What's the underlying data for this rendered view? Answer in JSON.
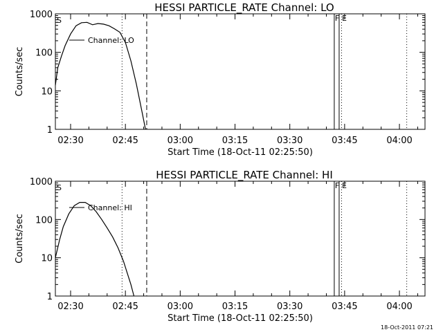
{
  "chart_data": [
    {
      "type": "line",
      "title": "HESSI PARTICLE_RATE Channel: LO",
      "xlabel": "Start Time (18-Oct-11 02:25:50)",
      "ylabel": "Counts/sec",
      "yscale": "log",
      "ylim": [
        1,
        1000
      ],
      "xlim": [
        "02:25:50",
        "04:07:00"
      ],
      "x_ticks": [
        "02:30",
        "02:45",
        "03:00",
        "03:15",
        "03:30",
        "03:45",
        "04:00"
      ],
      "y_ticks": [
        "1",
        "10",
        "100",
        "1000"
      ],
      "legend": "Channel: LO",
      "markers": [
        "S",
        "F",
        "E"
      ],
      "series": [
        {
          "name": "Channel: LO",
          "x": [
            "02:25:50",
            "02:26:30",
            "02:27:30",
            "02:28:30",
            "02:30:00",
            "02:31:30",
            "02:33:00",
            "02:34:30",
            "02:36:00",
            "02:37:30",
            "02:39:00",
            "02:40:30",
            "02:42:00",
            "02:43:30",
            "02:45:00",
            "02:46:30",
            "02:48:00",
            "02:49:30",
            "02:50:30"
          ],
          "y": [
            14,
            40,
            80,
            150,
            300,
            490,
            590,
            600,
            520,
            560,
            540,
            490,
            410,
            330,
            180,
            60,
            15,
            3,
            1
          ]
        }
      ],
      "vlines": [
        {
          "x": "02:44:05",
          "style": "dotted"
        },
        {
          "x": "02:50:50",
          "style": "dashed"
        },
        {
          "x": "03:42:10",
          "style": "solid"
        },
        {
          "x": "03:43:30",
          "style": "solid"
        },
        {
          "x": "03:44:10",
          "style": "dotted"
        },
        {
          "x": "04:02:00",
          "style": "dotted"
        }
      ]
    },
    {
      "type": "line",
      "title": "HESSI PARTICLE_RATE Channel: HI",
      "xlabel": "Start Time (18-Oct-11 02:25:50)",
      "ylabel": "Counts/sec",
      "yscale": "log",
      "ylim": [
        1,
        1000
      ],
      "xlim": [
        "02:25:50",
        "04:07:00"
      ],
      "x_ticks": [
        "02:30",
        "02:45",
        "03:00",
        "03:15",
        "03:30",
        "03:45",
        "04:00"
      ],
      "y_ticks": [
        "1",
        "10",
        "100",
        "1000"
      ],
      "legend": "Channel: HI",
      "markers": [
        "S",
        "F",
        "E"
      ],
      "series": [
        {
          "name": "Channel: HI",
          "x": [
            "02:25:50",
            "02:27:00",
            "02:28:00",
            "02:29:30",
            "02:31:00",
            "02:32:30",
            "02:34:00",
            "02:35:30",
            "02:37:00",
            "02:38:30",
            "02:40:00",
            "02:41:30",
            "02:43:00",
            "02:44:30",
            "02:45:30",
            "02:46:30",
            "02:47:20"
          ],
          "y": [
            10,
            30,
            65,
            140,
            230,
            280,
            280,
            230,
            160,
            100,
            60,
            35,
            18,
            8,
            4,
            2,
            1
          ]
        }
      ],
      "vlines": [
        {
          "x": "02:44:05",
          "style": "dotted"
        },
        {
          "x": "02:50:50",
          "style": "dashed"
        },
        {
          "x": "03:42:10",
          "style": "solid"
        },
        {
          "x": "03:43:30",
          "style": "solid"
        },
        {
          "x": "03:44:10",
          "style": "dotted"
        },
        {
          "x": "04:02:00",
          "style": "dotted"
        }
      ]
    }
  ],
  "footer": {
    "timestamp": "18-Oct-2011 07:21"
  }
}
